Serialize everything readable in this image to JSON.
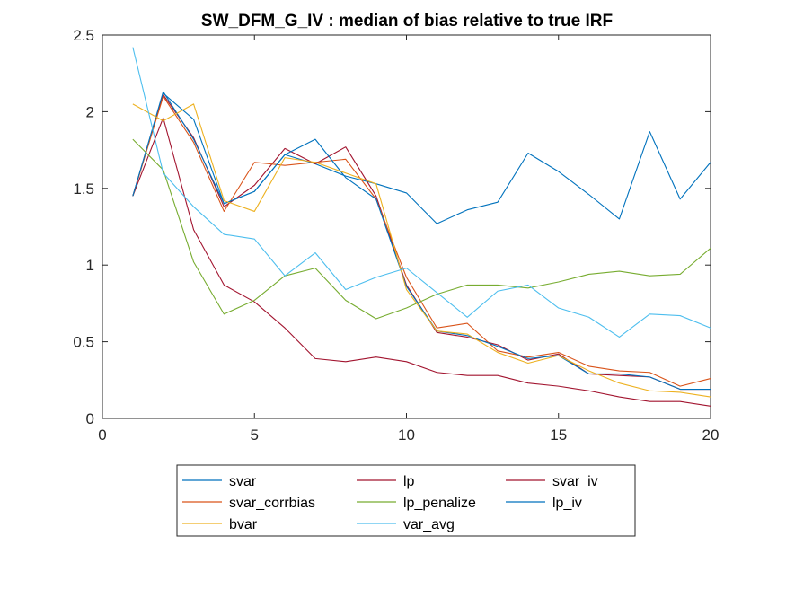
{
  "chart_data": {
    "type": "line",
    "title": "SW_DFM_G_IV : median of bias relative to true IRF",
    "xlabel": "",
    "ylabel": "",
    "xlim": [
      0,
      20
    ],
    "ylim": [
      0,
      2.5
    ],
    "xticks": [
      0,
      5,
      10,
      15,
      20
    ],
    "yticks": [
      0,
      0.5,
      1,
      1.5,
      2,
      2.5
    ],
    "x": [
      1,
      2,
      3,
      4,
      5,
      6,
      7,
      8,
      9,
      10,
      11,
      12,
      13,
      14,
      15,
      16,
      17,
      18,
      19,
      20
    ],
    "legend_position": "bottom",
    "grid": false,
    "series": [
      {
        "name": "svar",
        "color": "#0072BD",
        "values": [
          1.45,
          2.12,
          1.95,
          1.4,
          1.48,
          1.72,
          1.66,
          1.58,
          1.53,
          1.47,
          1.27,
          1.36,
          1.41,
          1.73,
          1.61,
          1.46,
          1.3,
          1.87,
          1.43,
          1.67
        ]
      },
      {
        "name": "lp",
        "color": "#A2142F",
        "values": [
          1.45,
          2.11,
          1.83,
          1.38,
          1.52,
          1.76,
          1.66,
          1.77,
          1.45,
          0.87,
          0.56,
          0.53,
          0.48,
          0.38,
          0.42,
          0.29,
          0.28,
          0.27,
          0.19,
          0.19
        ]
      },
      {
        "name": "svar_iv",
        "color": "#A2142F",
        "values": [
          1.45,
          1.96,
          1.23,
          0.87,
          0.76,
          0.59,
          0.39,
          0.37,
          0.4,
          0.37,
          0.3,
          0.28,
          0.28,
          0.23,
          0.21,
          0.18,
          0.14,
          0.11,
          0.11,
          0.08
        ]
      },
      {
        "name": "svar_corrbias",
        "color": "#D95319",
        "values": [
          1.45,
          2.1,
          1.8,
          1.35,
          1.67,
          1.65,
          1.67,
          1.69,
          1.43,
          0.92,
          0.59,
          0.62,
          0.44,
          0.4,
          0.43,
          0.34,
          0.31,
          0.3,
          0.21,
          0.26
        ]
      },
      {
        "name": "lp_penalize",
        "color": "#77AC30",
        "values": [
          1.82,
          1.62,
          1.02,
          0.68,
          0.77,
          0.93,
          0.98,
          0.77,
          0.65,
          0.72,
          0.81,
          0.87,
          0.87,
          0.85,
          0.89,
          0.94,
          0.96,
          0.93,
          0.94,
          1.11
        ]
      },
      {
        "name": "lp_iv",
        "color": "#0072BD",
        "values": [
          1.45,
          2.13,
          1.82,
          1.4,
          1.48,
          1.72,
          1.82,
          1.57,
          1.43,
          0.86,
          0.57,
          0.54,
          0.47,
          0.39,
          0.41,
          0.29,
          0.29,
          0.27,
          0.19,
          0.19
        ]
      },
      {
        "name": "bvar",
        "color": "#EDB120",
        "values": [
          2.05,
          1.94,
          2.05,
          1.42,
          1.35,
          1.7,
          1.67,
          1.6,
          1.53,
          0.84,
          0.57,
          0.55,
          0.43,
          0.36,
          0.41,
          0.31,
          0.23,
          0.18,
          0.17,
          0.14
        ]
      },
      {
        "name": "var_avg",
        "color": "#4DBEEE",
        "values": [
          2.42,
          1.6,
          1.38,
          1.2,
          1.17,
          0.93,
          1.08,
          0.84,
          0.92,
          0.98,
          0.82,
          0.66,
          0.83,
          0.87,
          0.72,
          0.66,
          0.53,
          0.68,
          0.67,
          0.59
        ]
      }
    ]
  }
}
